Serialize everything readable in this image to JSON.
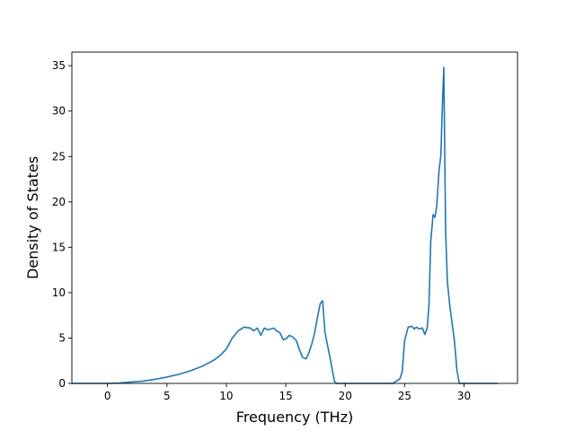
{
  "chart_data": {
    "type": "line",
    "title": "",
    "xlabel": "Frequency (THz)",
    "ylabel": "Density of States",
    "xlim": [
      -3.0,
      34.5
    ],
    "ylim": [
      0,
      36.5
    ],
    "xticks": [
      0,
      5,
      10,
      15,
      20,
      25,
      30
    ],
    "yticks": [
      0,
      5,
      10,
      15,
      20,
      25,
      30,
      35
    ],
    "grid": false,
    "legend": "none",
    "series": [
      {
        "color": "#1f77b4",
        "x": [
          -3.0,
          -1.0,
          0.0,
          1.0,
          2.0,
          3.0,
          4.0,
          5.0,
          6.0,
          7.0,
          8.0,
          9.0,
          9.5,
          10.0,
          10.5,
          11.0,
          11.5,
          12.0,
          12.3,
          12.6,
          12.9,
          13.2,
          13.5,
          14.0,
          14.2,
          14.5,
          14.8,
          15.0,
          15.3,
          15.6,
          15.9,
          16.1,
          16.4,
          16.7,
          16.9,
          17.2,
          17.4,
          17.7,
          17.9,
          18.1,
          18.3,
          18.5,
          18.7,
          18.9,
          19.1,
          19.3,
          20.0,
          22.0,
          24.0,
          24.6,
          24.8,
          25.0,
          25.3,
          25.6,
          25.8,
          26.0,
          26.2,
          26.5,
          26.7,
          26.9,
          27.05,
          27.2,
          27.4,
          27.55,
          27.7,
          27.9,
          28.05,
          28.2,
          28.3,
          28.45,
          28.6,
          28.8,
          29.0,
          29.2,
          29.4,
          29.6,
          29.8,
          30.0,
          31.0,
          32.0,
          32.8
        ],
        "y": [
          0,
          0,
          0,
          0.05,
          0.15,
          0.25,
          0.45,
          0.7,
          1.0,
          1.4,
          1.9,
          2.6,
          3.1,
          3.8,
          5.0,
          5.8,
          6.2,
          6.1,
          5.8,
          6.1,
          5.3,
          6.1,
          5.9,
          6.1,
          5.8,
          5.6,
          4.8,
          4.9,
          5.3,
          5.1,
          4.7,
          3.9,
          2.9,
          2.7,
          3.2,
          4.4,
          5.4,
          7.5,
          8.8,
          9.1,
          5.6,
          4.3,
          3.0,
          1.6,
          0.2,
          0,
          0,
          0,
          0,
          0.5,
          1.3,
          4.7,
          6.2,
          6.3,
          6.0,
          6.2,
          6.0,
          6.1,
          5.4,
          6.1,
          8.6,
          15.7,
          18.6,
          18.3,
          19.5,
          23.5,
          25.1,
          31.4,
          34.8,
          16.8,
          11.2,
          8.6,
          6.6,
          4.6,
          1.5,
          0,
          0,
          0,
          0,
          0,
          0
        ]
      }
    ]
  }
}
